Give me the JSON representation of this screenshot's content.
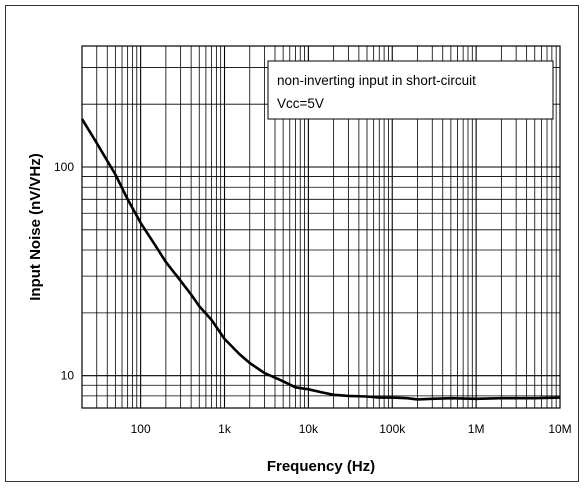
{
  "chart_data": {
    "type": "line",
    "xlabel": "Frequency  (Hz)",
    "ylabel": "Input Noise   (nV/VHz)",
    "x_scale": "log",
    "y_scale": "log",
    "xlim": [
      20,
      10000000
    ],
    "ylim": [
      7,
      380
    ],
    "x_ticks": [
      {
        "value": 100,
        "label": "100"
      },
      {
        "value": 1000,
        "label": "1k"
      },
      {
        "value": 10000,
        "label": "10k"
      },
      {
        "value": 100000,
        "label": "100k"
      },
      {
        "value": 1000000,
        "label": "1M"
      },
      {
        "value": 10000000,
        "label": "10M"
      }
    ],
    "y_ticks": [
      {
        "value": 10,
        "label": "10"
      },
      {
        "value": 100,
        "label": "100"
      }
    ],
    "grid": true,
    "legend_position": "top-right",
    "annotations": [
      "non-inverting input in short-circuit",
      "Vcc=5V"
    ],
    "series": [
      {
        "color": "#000000",
        "x": [
          20,
          30,
          50,
          70,
          100,
          150,
          200,
          300,
          400,
          500,
          700,
          1000,
          1500,
          2000,
          3000,
          5000,
          7000,
          10000,
          15000,
          20000,
          30000,
          50000,
          70000,
          100000,
          150000,
          200000,
          300000,
          500000,
          1000000,
          2000000,
          5000000,
          10000000
        ],
        "y": [
          170,
          130,
          92,
          70,
          54,
          42,
          35,
          28.5,
          24.5,
          21.5,
          18.5,
          15,
          12.7,
          11.5,
          10.3,
          9.4,
          8.8,
          8.6,
          8.3,
          8.1,
          8.0,
          7.95,
          7.85,
          7.85,
          7.8,
          7.7,
          7.75,
          7.8,
          7.75,
          7.8,
          7.8,
          7.85
        ]
      }
    ]
  }
}
